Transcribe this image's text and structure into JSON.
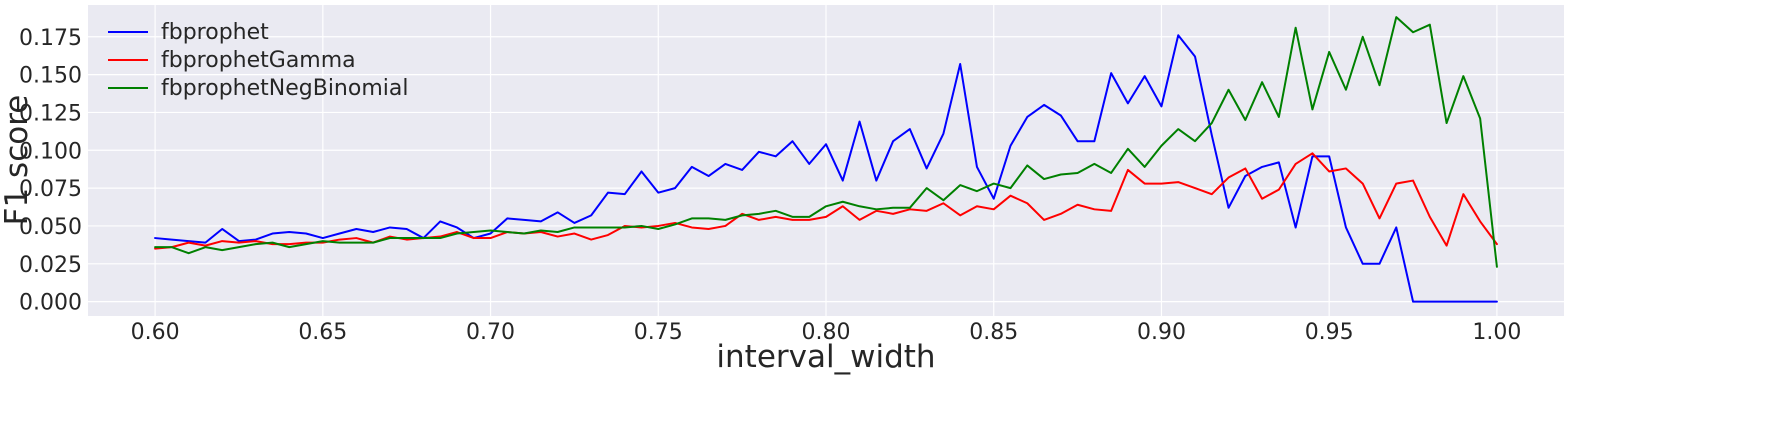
{
  "chart_data": {
    "type": "line",
    "xlabel": "interval_width",
    "ylabel": "F1 score",
    "xlim": [
      0.58,
      1.02
    ],
    "ylim": [
      -0.0095,
      0.196
    ],
    "xticks": [
      "0.60",
      "0.65",
      "0.70",
      "0.75",
      "0.80",
      "0.85",
      "0.90",
      "0.95",
      "1.00"
    ],
    "yticks": [
      "0.000",
      "0.025",
      "0.050",
      "0.075",
      "0.100",
      "0.125",
      "0.150",
      "0.175"
    ],
    "grid": true,
    "legend_position": "top-left",
    "x": [
      0.6,
      0.605,
      0.61,
      0.615,
      0.62,
      0.625,
      0.63,
      0.635,
      0.64,
      0.645,
      0.65,
      0.655,
      0.66,
      0.665,
      0.67,
      0.675,
      0.68,
      0.685,
      0.69,
      0.695,
      0.7,
      0.705,
      0.71,
      0.715,
      0.72,
      0.725,
      0.73,
      0.735,
      0.74,
      0.745,
      0.75,
      0.755,
      0.76,
      0.765,
      0.77,
      0.775,
      0.78,
      0.785,
      0.79,
      0.795,
      0.8,
      0.805,
      0.81,
      0.815,
      0.82,
      0.825,
      0.83,
      0.835,
      0.84,
      0.845,
      0.85,
      0.855,
      0.86,
      0.865,
      0.87,
      0.875,
      0.88,
      0.885,
      0.89,
      0.895,
      0.9,
      0.905,
      0.91,
      0.915,
      0.92,
      0.925,
      0.93,
      0.935,
      0.94,
      0.945,
      0.95,
      0.955,
      0.96,
      0.965,
      0.97,
      0.975,
      0.98,
      0.985,
      0.99,
      0.995,
      1.0
    ],
    "series": [
      {
        "name": "fbprophet",
        "color": "#0000ff",
        "values": [
          0.042,
          0.041,
          0.04,
          0.039,
          0.048,
          0.04,
          0.041,
          0.045,
          0.046,
          0.045,
          0.042,
          0.045,
          0.048,
          0.046,
          0.049,
          0.048,
          0.042,
          0.053,
          0.049,
          0.042,
          0.045,
          0.055,
          0.054,
          0.053,
          0.059,
          0.052,
          0.057,
          0.072,
          0.071,
          0.086,
          0.072,
          0.075,
          0.089,
          0.083,
          0.091,
          0.087,
          0.099,
          0.096,
          0.106,
          0.091,
          0.104,
          0.08,
          0.119,
          0.08,
          0.106,
          0.114,
          0.088,
          0.111,
          0.157,
          0.089,
          0.068,
          0.103,
          0.122,
          0.13,
          0.123,
          0.106,
          0.106,
          0.151,
          0.131,
          0.149,
          0.129,
          0.176,
          0.162,
          0.11,
          0.062,
          0.083,
          0.089,
          0.092,
          0.049,
          0.096,
          0.096,
          0.049,
          0.025,
          0.025,
          0.049,
          0.0,
          0.0,
          0.0,
          0.0,
          0.0,
          0.0
        ]
      },
      {
        "name": "fbprophetGamma",
        "color": "#ff0000",
        "values": [
          0.035,
          0.036,
          0.039,
          0.037,
          0.04,
          0.039,
          0.04,
          0.038,
          0.038,
          0.039,
          0.039,
          0.041,
          0.042,
          0.039,
          0.043,
          0.041,
          0.042,
          0.043,
          0.046,
          0.042,
          0.042,
          0.046,
          0.045,
          0.046,
          0.043,
          0.045,
          0.041,
          0.044,
          0.05,
          0.049,
          0.05,
          0.052,
          0.049,
          0.048,
          0.05,
          0.058,
          0.054,
          0.056,
          0.054,
          0.054,
          0.056,
          0.063,
          0.054,
          0.06,
          0.058,
          0.061,
          0.06,
          0.065,
          0.057,
          0.063,
          0.061,
          0.07,
          0.065,
          0.054,
          0.058,
          0.064,
          0.061,
          0.06,
          0.087,
          0.078,
          0.078,
          0.079,
          0.075,
          0.071,
          0.082,
          0.088,
          0.068,
          0.074,
          0.091,
          0.098,
          0.086,
          0.088,
          0.078,
          0.055,
          0.078,
          0.08,
          0.056,
          0.037,
          0.071,
          0.053,
          0.038
        ]
      },
      {
        "name": "fbprophetNegBinomial",
        "color": "#008000",
        "values": [
          0.036,
          0.036,
          0.032,
          0.036,
          0.034,
          0.036,
          0.038,
          0.039,
          0.036,
          0.038,
          0.04,
          0.039,
          0.039,
          0.039,
          0.042,
          0.042,
          0.042,
          0.042,
          0.045,
          0.046,
          0.047,
          0.046,
          0.045,
          0.047,
          0.046,
          0.049,
          0.049,
          0.049,
          0.049,
          0.05,
          0.048,
          0.051,
          0.055,
          0.055,
          0.054,
          0.057,
          0.058,
          0.06,
          0.056,
          0.056,
          0.063,
          0.066,
          0.063,
          0.061,
          0.062,
          0.062,
          0.075,
          0.067,
          0.077,
          0.073,
          0.078,
          0.075,
          0.09,
          0.081,
          0.084,
          0.085,
          0.091,
          0.085,
          0.101,
          0.089,
          0.103,
          0.114,
          0.106,
          0.118,
          0.14,
          0.12,
          0.145,
          0.122,
          0.181,
          0.127,
          0.165,
          0.14,
          0.175,
          0.143,
          0.188,
          0.178,
          0.183,
          0.118,
          0.149,
          0.121,
          0.023
        ]
      }
    ]
  }
}
